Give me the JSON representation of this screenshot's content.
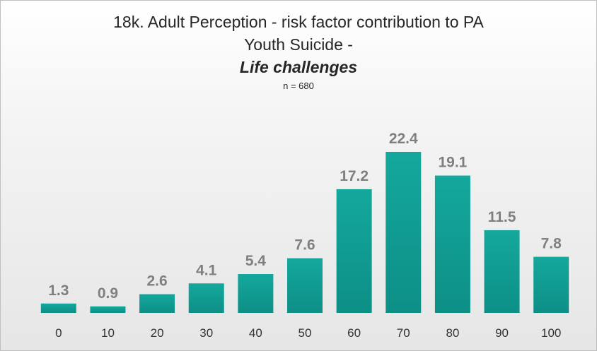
{
  "chart_data": {
    "type": "bar",
    "title": "18k. Adult Perception - risk factor contribution to PA Youth Suicide -",
    "subtitle": "Life challenges",
    "note": "n = 680",
    "categories": [
      "0",
      "10",
      "20",
      "30",
      "40",
      "50",
      "60",
      "70",
      "80",
      "90",
      "100"
    ],
    "values": [
      1.3,
      0.9,
      2.6,
      4.1,
      5.4,
      7.6,
      17.2,
      22.4,
      19.1,
      11.5,
      7.8
    ],
    "color": "#14a89d"
  }
}
